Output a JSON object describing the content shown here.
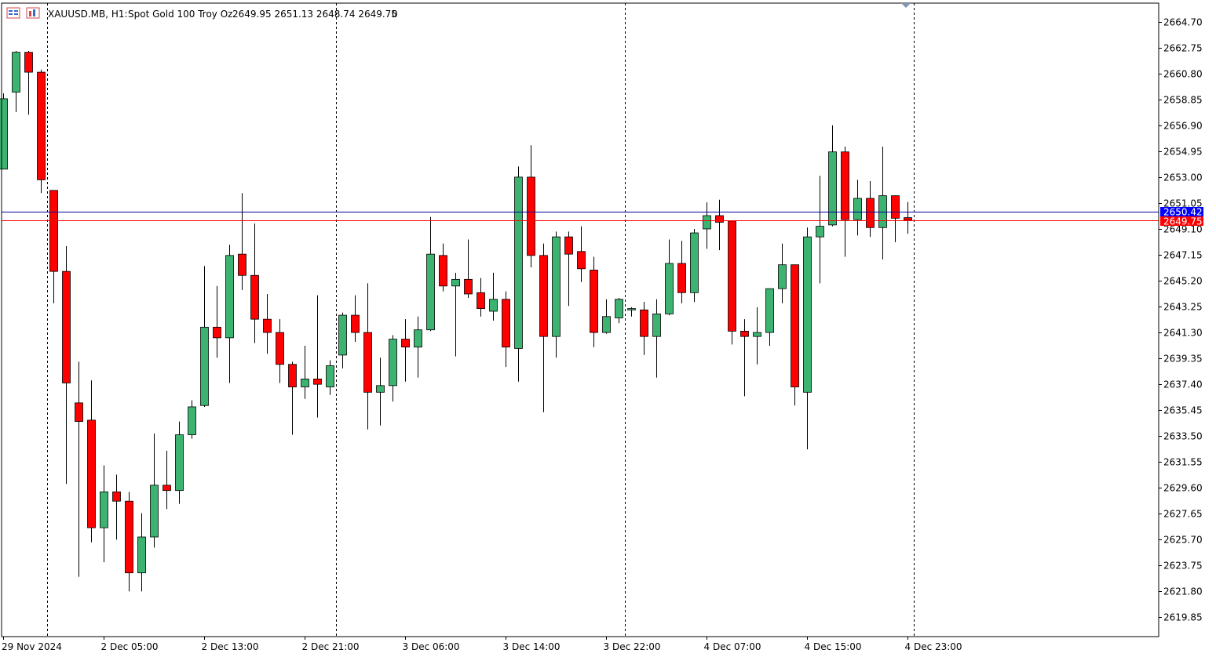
{
  "colors": {
    "background": "#ffffff",
    "frame": "#000000",
    "grid": "#000000",
    "bull_fill": "#3cb371",
    "bear_fill": "#ff0000",
    "candle_outline": "#000000",
    "bid_line": "#ff0000",
    "ask_line": "#0000a0",
    "ask_badge": "#0000ff",
    "bid_badge": "#ff0000"
  },
  "header": {
    "symbol": "XAUUSD.MB, H1:",
    "description": "Spot Gold 100 Troy Oz",
    "ohlc": "2649.95 2651.13 2648.74 2649.75",
    "volume": "0",
    "icons": [
      "chart-table-icon",
      "chart-properties-icon"
    ]
  },
  "price_labels": {
    "ask": "2650.42",
    "bid": "2649.75"
  },
  "chart_data": {
    "type": "candlestick",
    "title": "XAUUSD.MB, H1:  Spot Gold 100 Troy Oz",
    "ylim": [
      2618.4,
      2666.1
    ],
    "y_ticks": [
      "2664.70",
      "2662.75",
      "2660.80",
      "2658.85",
      "2656.90",
      "2654.95",
      "2653.00",
      "2651.05",
      "2649.10",
      "2647.15",
      "2645.20",
      "2643.25",
      "2641.30",
      "2639.35",
      "2637.40",
      "2635.45",
      "2633.50",
      "2631.55",
      "2629.60",
      "2627.65",
      "2625.70",
      "2623.75",
      "2621.80",
      "2619.85"
    ],
    "x_ticks": [
      {
        "label": "29 Nov 2024",
        "index": 0
      },
      {
        "label": "2 Dec 05:00",
        "index": 8
      },
      {
        "label": "2 Dec 13:00",
        "index": 16
      },
      {
        "label": "2 Dec 21:00",
        "index": 24
      },
      {
        "label": "3 Dec 06:00",
        "index": 32
      },
      {
        "label": "3 Dec 14:00",
        "index": 40
      },
      {
        "label": "3 Dec 22:00",
        "index": 48
      },
      {
        "label": "4 Dec 07:00",
        "index": 56
      },
      {
        "label": "4 Dec 15:00",
        "index": 64
      },
      {
        "label": "4 Dec 23:00",
        "index": 72
      }
    ],
    "separators": [
      3.5,
      26.5,
      49.5,
      72.5
    ],
    "current": {
      "ask": 2650.42,
      "bid": 2649.75
    },
    "candles": [
      {
        "o": 2653.6,
        "h": 2659.3,
        "l": 2653.6,
        "c": 2658.9
      },
      {
        "o": 2659.4,
        "h": 2662.5,
        "l": 2657.9,
        "c": 2662.4
      },
      {
        "o": 2662.4,
        "h": 2662.5,
        "l": 2657.7,
        "c": 2660.9
      },
      {
        "o": 2660.9,
        "h": 2661.1,
        "l": 2651.8,
        "c": 2652.8
      },
      {
        "o": 2652.0,
        "h": 2652.0,
        "l": 2643.5,
        "c": 2645.9
      },
      {
        "o": 2645.9,
        "h": 2647.8,
        "l": 2629.9,
        "c": 2637.5
      },
      {
        "o": 2636.0,
        "h": 2639.1,
        "l": 2622.9,
        "c": 2634.6
      },
      {
        "o": 2634.7,
        "h": 2637.7,
        "l": 2625.5,
        "c": 2626.6
      },
      {
        "o": 2626.6,
        "h": 2631.3,
        "l": 2624.0,
        "c": 2629.3
      },
      {
        "o": 2629.3,
        "h": 2630.6,
        "l": 2625.7,
        "c": 2628.6
      },
      {
        "o": 2628.6,
        "h": 2629.3,
        "l": 2621.8,
        "c": 2623.2
      },
      {
        "o": 2623.2,
        "h": 2627.7,
        "l": 2621.8,
        "c": 2625.9
      },
      {
        "o": 2625.9,
        "h": 2633.7,
        "l": 2625.1,
        "c": 2629.8
      },
      {
        "o": 2629.8,
        "h": 2632.4,
        "l": 2628.0,
        "c": 2629.4
      },
      {
        "o": 2629.4,
        "h": 2634.6,
        "l": 2628.4,
        "c": 2633.6
      },
      {
        "o": 2633.6,
        "h": 2636.2,
        "l": 2633.3,
        "c": 2635.7
      },
      {
        "o": 2635.8,
        "h": 2646.3,
        "l": 2635.7,
        "c": 2641.7
      },
      {
        "o": 2641.7,
        "h": 2644.8,
        "l": 2639.4,
        "c": 2640.9
      },
      {
        "o": 2640.9,
        "h": 2647.9,
        "l": 2637.5,
        "c": 2647.1
      },
      {
        "o": 2647.2,
        "h": 2651.8,
        "l": 2644.5,
        "c": 2645.6
      },
      {
        "o": 2645.6,
        "h": 2649.5,
        "l": 2640.5,
        "c": 2642.3
      },
      {
        "o": 2642.3,
        "h": 2644.2,
        "l": 2639.7,
        "c": 2641.3
      },
      {
        "o": 2641.3,
        "h": 2642.3,
        "l": 2637.5,
        "c": 2638.9
      },
      {
        "o": 2638.9,
        "h": 2639.1,
        "l": 2633.6,
        "c": 2637.2
      },
      {
        "o": 2637.2,
        "h": 2640.3,
        "l": 2636.3,
        "c": 2637.8
      },
      {
        "o": 2637.8,
        "h": 2644.1,
        "l": 2634.9,
        "c": 2637.4
      },
      {
        "o": 2637.2,
        "h": 2639.2,
        "l": 2636.6,
        "c": 2638.8
      },
      {
        "o": 2639.6,
        "h": 2642.8,
        "l": 2638.6,
        "c": 2642.6
      },
      {
        "o": 2642.6,
        "h": 2644.1,
        "l": 2640.6,
        "c": 2641.3
      },
      {
        "o": 2641.3,
        "h": 2645.0,
        "l": 2634.0,
        "c": 2636.8
      },
      {
        "o": 2636.8,
        "h": 2639.4,
        "l": 2634.3,
        "c": 2637.3
      },
      {
        "o": 2637.3,
        "h": 2641.1,
        "l": 2636.1,
        "c": 2640.8
      },
      {
        "o": 2640.8,
        "h": 2642.3,
        "l": 2637.6,
        "c": 2640.2
      },
      {
        "o": 2640.2,
        "h": 2642.5,
        "l": 2637.9,
        "c": 2641.5
      },
      {
        "o": 2641.5,
        "h": 2650.0,
        "l": 2641.4,
        "c": 2647.2
      },
      {
        "o": 2647.1,
        "h": 2648.0,
        "l": 2644.4,
        "c": 2644.8
      },
      {
        "o": 2644.8,
        "h": 2645.8,
        "l": 2639.5,
        "c": 2645.3
      },
      {
        "o": 2645.3,
        "h": 2648.3,
        "l": 2643.9,
        "c": 2644.2
      },
      {
        "o": 2644.3,
        "h": 2645.4,
        "l": 2642.5,
        "c": 2643.1
      },
      {
        "o": 2642.9,
        "h": 2645.8,
        "l": 2642.2,
        "c": 2643.8
      },
      {
        "o": 2643.8,
        "h": 2644.4,
        "l": 2638.7,
        "c": 2640.2
      },
      {
        "o": 2640.1,
        "h": 2653.8,
        "l": 2637.6,
        "c": 2653.0
      },
      {
        "o": 2653.0,
        "h": 2655.4,
        "l": 2646.2,
        "c": 2647.1
      },
      {
        "o": 2647.1,
        "h": 2648.0,
        "l": 2635.3,
        "c": 2641.0
      },
      {
        "o": 2641.0,
        "h": 2648.9,
        "l": 2639.4,
        "c": 2648.5
      },
      {
        "o": 2648.5,
        "h": 2648.9,
        "l": 2643.3,
        "c": 2647.2
      },
      {
        "o": 2647.4,
        "h": 2649.3,
        "l": 2645.1,
        "c": 2646.1
      },
      {
        "o": 2646.0,
        "h": 2647.0,
        "l": 2640.2,
        "c": 2641.3
      },
      {
        "o": 2641.3,
        "h": 2643.8,
        "l": 2641.2,
        "c": 2642.5
      },
      {
        "o": 2642.4,
        "h": 2643.9,
        "l": 2642.0,
        "c": 2643.8
      },
      {
        "o": 2643.0,
        "h": 2643.2,
        "l": 2642.5,
        "c": 2643.1
      },
      {
        "o": 2643.0,
        "h": 2643.6,
        "l": 2639.6,
        "c": 2641.0
      },
      {
        "o": 2641.0,
        "h": 2643.8,
        "l": 2637.9,
        "c": 2642.7
      },
      {
        "o": 2642.7,
        "h": 2648.3,
        "l": 2642.6,
        "c": 2646.5
      },
      {
        "o": 2646.5,
        "h": 2648.2,
        "l": 2643.5,
        "c": 2644.3
      },
      {
        "o": 2644.3,
        "h": 2649.1,
        "l": 2643.6,
        "c": 2648.8
      },
      {
        "o": 2649.1,
        "h": 2651.1,
        "l": 2647.6,
        "c": 2650.1
      },
      {
        "o": 2650.1,
        "h": 2651.3,
        "l": 2647.5,
        "c": 2649.6
      },
      {
        "o": 2649.7,
        "h": 2649.7,
        "l": 2640.4,
        "c": 2641.4
      },
      {
        "o": 2641.4,
        "h": 2642.3,
        "l": 2636.5,
        "c": 2641.0
      },
      {
        "o": 2641.0,
        "h": 2643.2,
        "l": 2638.9,
        "c": 2641.3
      },
      {
        "o": 2641.3,
        "h": 2644.6,
        "l": 2640.3,
        "c": 2644.6
      },
      {
        "o": 2644.6,
        "h": 2648.0,
        "l": 2643.5,
        "c": 2646.4
      },
      {
        "o": 2646.4,
        "h": 2646.4,
        "l": 2635.8,
        "c": 2637.2
      },
      {
        "o": 2636.8,
        "h": 2649.2,
        "l": 2632.5,
        "c": 2648.5
      },
      {
        "o": 2648.5,
        "h": 2653.1,
        "l": 2645.0,
        "c": 2649.3
      },
      {
        "o": 2649.4,
        "h": 2656.9,
        "l": 2649.3,
        "c": 2654.9
      },
      {
        "o": 2654.9,
        "h": 2655.3,
        "l": 2647.0,
        "c": 2649.8
      },
      {
        "o": 2649.8,
        "h": 2652.8,
        "l": 2648.6,
        "c": 2651.4
      },
      {
        "o": 2651.4,
        "h": 2652.7,
        "l": 2648.5,
        "c": 2649.2
      },
      {
        "o": 2649.2,
        "h": 2655.3,
        "l": 2646.8,
        "c": 2651.6
      },
      {
        "o": 2651.6,
        "h": 2651.6,
        "l": 2648.1,
        "c": 2649.9
      },
      {
        "o": 2649.95,
        "h": 2651.13,
        "l": 2648.74,
        "c": 2649.75
      }
    ]
  }
}
